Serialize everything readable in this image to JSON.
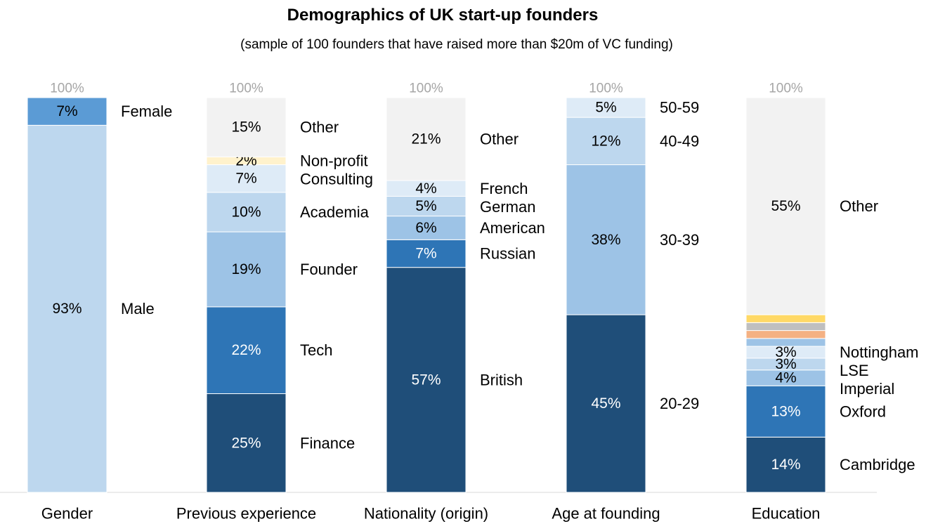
{
  "title": "Demographics of UK start-up founders",
  "subtitle": "(sample of 100 founders that have raised more than $20m of VC funding)",
  "chart_data": {
    "type": "bar",
    "stacked": true,
    "ylim": [
      0,
      100
    ],
    "grid": false,
    "categories": [
      "Gender",
      "Previous experience",
      "Nationality (origin)",
      "Age at founding",
      "Education"
    ],
    "totals": [
      "100%",
      "100%",
      "100%",
      "100%",
      "100%"
    ],
    "stacks": [
      {
        "category": "Gender",
        "segments": [
          {
            "name": "Male",
            "value": 93,
            "label": "93%",
            "color": "#bdd7ee"
          },
          {
            "name": "Female",
            "value": 7,
            "label": "7%",
            "color": "#5b9bd5"
          }
        ]
      },
      {
        "category": "Previous experience",
        "segments": [
          {
            "name": "Finance",
            "value": 25,
            "label": "25%",
            "color": "#1f4e79"
          },
          {
            "name": "Tech",
            "value": 22,
            "label": "22%",
            "color": "#2e75b6"
          },
          {
            "name": "Founder",
            "value": 19,
            "label": "19%",
            "color": "#9dc3e6"
          },
          {
            "name": "Academia",
            "value": 10,
            "label": "10%",
            "color": "#bdd7ee"
          },
          {
            "name": "Consulting",
            "value": 7,
            "label": "7%",
            "color": "#deebf7"
          },
          {
            "name": "Non-profit",
            "value": 2,
            "label": "2%",
            "color": "#fff2cc"
          },
          {
            "name": "Other",
            "value": 15,
            "label": "15%",
            "color": "#f2f2f2"
          }
        ]
      },
      {
        "category": "Nationality (origin)",
        "segments": [
          {
            "name": "British",
            "value": 57,
            "label": "57%",
            "color": "#1f4e79"
          },
          {
            "name": "Russian",
            "value": 7,
            "label": "7%",
            "color": "#2e75b6"
          },
          {
            "name": "American",
            "value": 6,
            "label": "6%",
            "color": "#9dc3e6"
          },
          {
            "name": "German",
            "value": 5,
            "label": "5%",
            "color": "#bdd7ee"
          },
          {
            "name": "French",
            "value": 4,
            "label": "4%",
            "color": "#deebf7"
          },
          {
            "name": "Other",
            "value": 21,
            "label": "21%",
            "color": "#f2f2f2"
          }
        ]
      },
      {
        "category": "Age at founding",
        "segments": [
          {
            "name": "20-29",
            "value": 45,
            "label": "45%",
            "color": "#1f4e79"
          },
          {
            "name": "30-39",
            "value": 38,
            "label": "38%",
            "color": "#9dc3e6"
          },
          {
            "name": "40-49",
            "value": 12,
            "label": "12%",
            "color": "#bdd7ee"
          },
          {
            "name": "50-59",
            "value": 5,
            "label": "5%",
            "color": "#deebf7"
          }
        ]
      },
      {
        "category": "Education",
        "segments": [
          {
            "name": "Cambridge",
            "value": 14,
            "label": "14%",
            "color": "#1f4e79"
          },
          {
            "name": "Oxford",
            "value": 13,
            "label": "13%",
            "color": "#2e75b6"
          },
          {
            "name": "Imperial",
            "value": 4,
            "label": "4%",
            "color": "#9dc3e6"
          },
          {
            "name": "LSE",
            "value": 3,
            "label": "3%",
            "color": "#bdd7ee"
          },
          {
            "name": "Nottingham",
            "value": 3,
            "label": "3%",
            "color": "#deebf7"
          },
          {
            "name": "",
            "value": 2,
            "label": "",
            "color": "#9dc3e6"
          },
          {
            "name": "",
            "value": 2,
            "label": "",
            "color": "#f4b183"
          },
          {
            "name": "",
            "value": 2,
            "label": "",
            "color": "#bfbfbf"
          },
          {
            "name": "",
            "value": 2,
            "label": "",
            "color": "#ffd966"
          },
          {
            "name": "Other",
            "value": 55,
            "label": "55%",
            "color": "#f2f2f2"
          }
        ]
      }
    ]
  }
}
